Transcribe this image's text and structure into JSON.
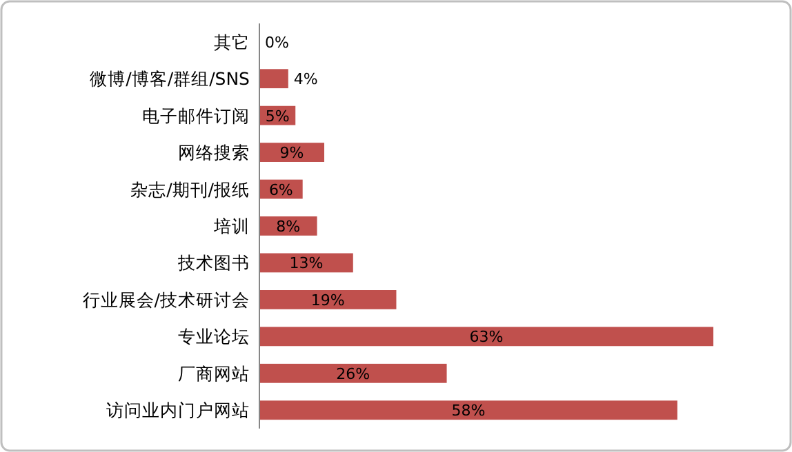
{
  "chart_data": {
    "type": "bar",
    "orientation": "horizontal",
    "color": "#c0504d",
    "categories": [
      "其它",
      "微博/博客/群组/SNS",
      "电子邮件订阅",
      "网络搜索",
      "杂志/期刊/报纸",
      "培训",
      "技术图书",
      "行业展会/技术研讨会",
      "专业论坛",
      "厂商网站",
      "访问业内门户网站"
    ],
    "values": [
      0,
      4,
      5,
      9,
      6,
      8,
      13,
      19,
      63,
      26,
      58
    ],
    "value_labels": [
      "0%",
      "4%",
      "5%",
      "9%",
      "6%",
      "8%",
      "13%",
      "19%",
      "63%",
      "26%",
      "58%"
    ]
  }
}
